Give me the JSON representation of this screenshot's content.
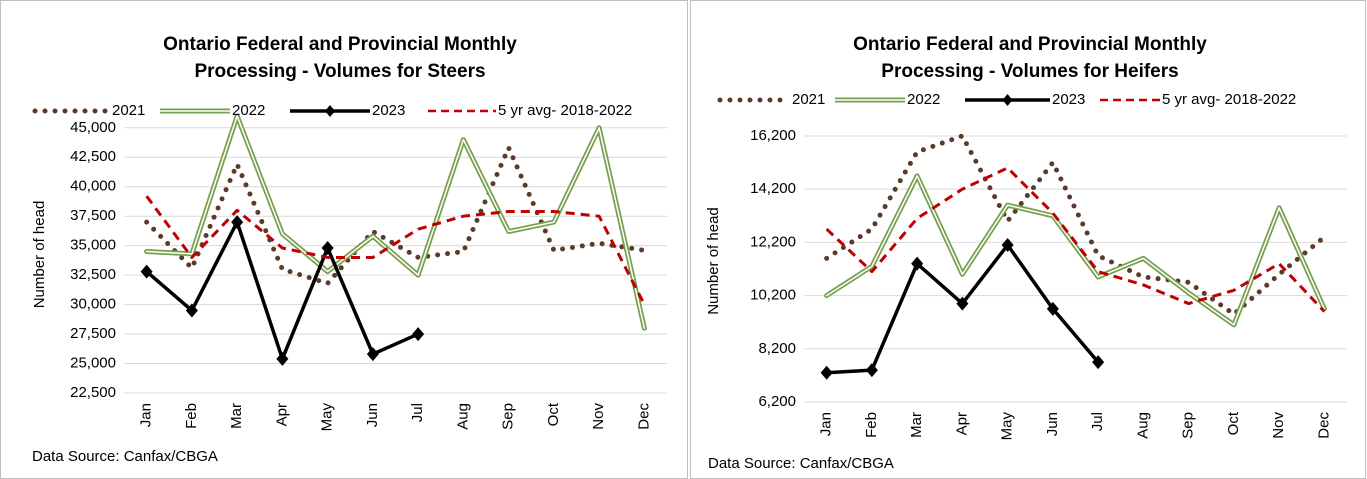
{
  "chart_data": [
    {
      "type": "line",
      "title": [
        "Ontario Federal and Provincial Monthly",
        "Processing - Volumes for Steers"
      ],
      "y_label": "Number of head",
      "source": "Data Source: Canfax/CBGA",
      "categories": [
        "Jan",
        "Feb",
        "Mar",
        "Apr",
        "May",
        "Jun",
        "Jul",
        "Aug",
        "Sep",
        "Oct",
        "Nov",
        "Dec"
      ],
      "ylim": [
        22500,
        46000
      ],
      "yticks": [
        {
          "value": 22500,
          "label": "22,500"
        },
        {
          "value": 25000,
          "label": "25,000"
        },
        {
          "value": 27500,
          "label": "27,500"
        },
        {
          "value": 30000,
          "label": "30,000"
        },
        {
          "value": 32500,
          "label": "32,500"
        },
        {
          "value": 35000,
          "label": "35,000"
        },
        {
          "value": 37500,
          "label": "37,500"
        },
        {
          "value": 40000,
          "label": "40,000"
        },
        {
          "value": 42500,
          "label": "42,500"
        },
        {
          "value": 45000,
          "label": "45,000"
        }
      ],
      "grid": true,
      "series": [
        {
          "name": "2021",
          "color": "#5b3a29",
          "style": "dotted",
          "values": [
            37000,
            33100,
            41900,
            33000,
            31800,
            36200,
            34000,
            34500,
            43300,
            34600,
            35200,
            34600
          ]
        },
        {
          "name": "2022",
          "color": "#76a04f",
          "style": "double",
          "values": [
            34500,
            34300,
            46000,
            36000,
            32800,
            35800,
            32500,
            44000,
            36200,
            37000,
            45000,
            28000
          ]
        },
        {
          "name": "2023",
          "color": "#000000",
          "style": "marker",
          "values": [
            32800,
            29500,
            37000,
            25400,
            34800,
            25800,
            27500,
            null,
            null,
            null,
            null,
            null
          ]
        },
        {
          "name": "5 yr avg- 2018-2022",
          "color": "#c00000",
          "style": "dashed",
          "values": [
            39200,
            34000,
            38000,
            34800,
            34000,
            34000,
            36400,
            37500,
            37900,
            37900,
            37500,
            30000
          ]
        }
      ]
    },
    {
      "type": "line",
      "title": [
        "Ontario Federal and Provincial Monthly",
        "Processing -  Volumes for Heifers"
      ],
      "y_label": "Number of head",
      "source": "Data Source: Canfax/CBGA",
      "categories": [
        "Jan",
        "Feb",
        "Mar",
        "Apr",
        "May",
        "Jun",
        "Jul",
        "Aug",
        "Sep",
        "Oct",
        "Nov",
        "Dec"
      ],
      "ylim": [
        6200,
        16800
      ],
      "yticks": [
        {
          "value": 6200,
          "label": "6,200"
        },
        {
          "value": 8200,
          "label": "8,200"
        },
        {
          "value": 10200,
          "label": "10,200"
        },
        {
          "value": 12200,
          "label": "12,200"
        },
        {
          "value": 14200,
          "label": "14,200"
        },
        {
          "value": 16200,
          "label": "16,200"
        }
      ],
      "grid": true,
      "series": [
        {
          "name": "2021",
          "color": "#5b3a29",
          "style": "dotted",
          "values": [
            11600,
            12700,
            15600,
            16200,
            13000,
            15200,
            11700,
            10900,
            10700,
            9500,
            11000,
            12400
          ]
        },
        {
          "name": "2022",
          "color": "#76a04f",
          "style": "double",
          "values": [
            10200,
            11300,
            14700,
            11000,
            13600,
            13200,
            10900,
            11600,
            10300,
            9100,
            13500,
            9700
          ]
        },
        {
          "name": "2023",
          "color": "#000000",
          "style": "marker",
          "values": [
            7300,
            7400,
            11400,
            9900,
            12100,
            9700,
            7700,
            null,
            null,
            null,
            null,
            null
          ]
        },
        {
          "name": "5 yr avg- 2018-2022",
          "color": "#c00000",
          "style": "dashed",
          "values": [
            12700,
            11100,
            13100,
            14200,
            15000,
            13300,
            11100,
            10600,
            9900,
            10400,
            11400,
            9600
          ]
        }
      ]
    }
  ]
}
